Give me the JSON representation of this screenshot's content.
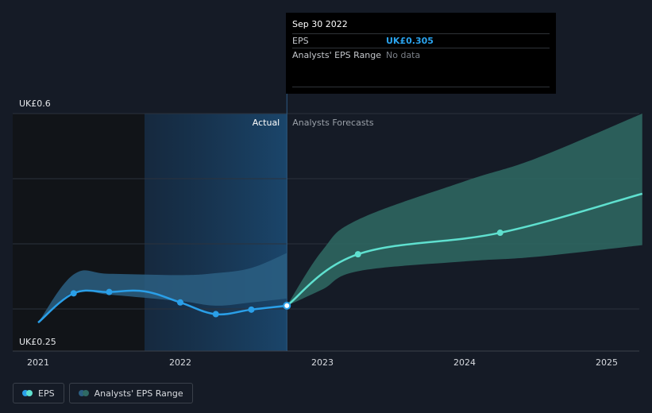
{
  "tooltip": {
    "date": "Sep 30 2022",
    "rows": [
      {
        "label": "EPS",
        "value": "UK£0.305"
      },
      {
        "label": "Analysts' EPS Range",
        "value": "No data"
      }
    ]
  },
  "legend": [
    {
      "label": "EPS",
      "colors": [
        "#2a9fe8",
        "#5fe0cf"
      ]
    },
    {
      "label": "Analysts' EPS Range",
      "colors": [
        "#2b5f83",
        "#2f6a64"
      ]
    }
  ],
  "colors": {
    "actual_line": "#2a9fe8",
    "forecast_line": "#5fe0cf",
    "actual_range": "#2b5f83",
    "forecast_range": "#2f6a64"
  },
  "chart_data": {
    "type": "line",
    "ylim": [
      0.25,
      0.6
    ],
    "y_labels": {
      "top": "UK£0.6",
      "bottom": "UK£0.25"
    },
    "x_ticks": [
      {
        "label": "2021",
        "value": 2021.0
      },
      {
        "label": "2022",
        "value": 2022.0
      },
      {
        "label": "2023",
        "value": 2023.0
      },
      {
        "label": "2024",
        "value": 2024.0
      },
      {
        "label": "2025",
        "value": 2025.0
      }
    ],
    "xlim": [
      2020.82,
      2025.25
    ],
    "divider_x": 2022.75,
    "region_labels": {
      "actual": "Actual",
      "forecast": "Analysts Forecasts"
    },
    "series": [
      {
        "name": "EPS",
        "points": [
          {
            "x": 2021.0,
            "y": 0.279
          },
          {
            "x": 2021.25,
            "y": 0.324
          },
          {
            "x": 2021.5,
            "y": 0.326
          },
          {
            "x": 2021.75,
            "y": 0.327
          },
          {
            "x": 2022.0,
            "y": 0.31
          },
          {
            "x": 2022.25,
            "y": 0.292
          },
          {
            "x": 2022.5,
            "y": 0.299
          },
          {
            "x": 2022.75,
            "y": 0.305
          }
        ]
      },
      {
        "name": "Forecast",
        "points": [
          {
            "x": 2022.75,
            "y": 0.305
          },
          {
            "x": 2023.25,
            "y": 0.384
          },
          {
            "x": 2024.25,
            "y": 0.417
          },
          {
            "x": 2025.25,
            "y": 0.477
          }
        ]
      }
    ],
    "actual_range": {
      "x": [
        2021.0,
        2021.25,
        2021.5,
        2022.0,
        2022.25,
        2022.5,
        2022.75
      ],
      "upper": [
        0.279,
        0.353,
        0.354,
        0.352,
        0.355,
        0.363,
        0.386
      ],
      "lower": [
        0.279,
        0.326,
        0.322,
        0.312,
        0.305,
        0.31,
        0.316
      ]
    },
    "forecast_range": {
      "x": [
        2022.75,
        2023.0,
        2023.25,
        2024.0,
        2024.5,
        2025.25
      ],
      "upper": [
        0.305,
        0.39,
        0.437,
        0.496,
        0.531,
        0.6
      ],
      "lower": [
        0.305,
        0.33,
        0.358,
        0.373,
        0.38,
        0.398
      ]
    }
  }
}
